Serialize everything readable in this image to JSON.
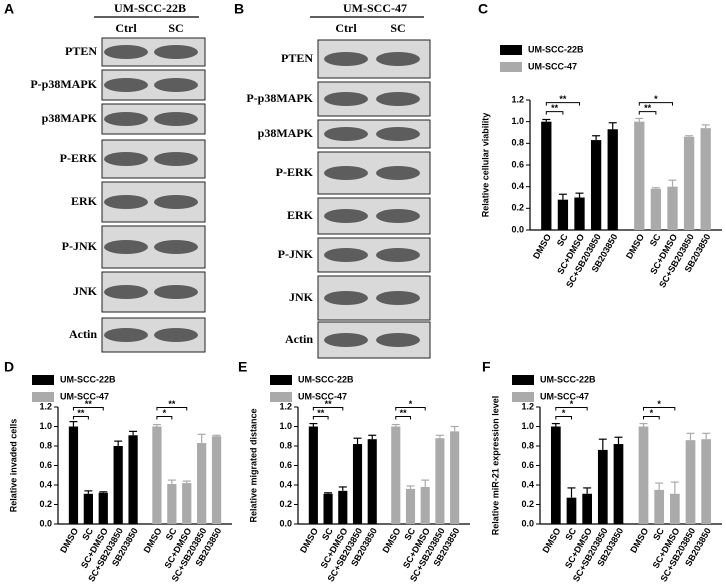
{
  "blots": [
    {
      "panel": "A",
      "title": "UM-SCC-22B",
      "lanes": [
        "Ctrl",
        "SC"
      ],
      "proteins": [
        "PTEN",
        "P-p38MAPK",
        "p38MAPK",
        "P-ERK",
        "ERK",
        "P-JNK",
        "JNK",
        "Actin"
      ]
    },
    {
      "panel": "B",
      "title": "UM-SCC-47",
      "lanes": [
        "Ctrl",
        "SC"
      ],
      "proteins": [
        "PTEN",
        "P-p38MAPK",
        "p38MAPK",
        "P-ERK",
        "ERK",
        "P-JNK",
        "JNK",
        "Actin"
      ]
    }
  ],
  "chart_data": [
    {
      "type": "bar",
      "panel": "C",
      "y_label": "Relative cellular viability",
      "categories": [
        "DMSO",
        "SC",
        "SC+DMSO",
        "SC+SB203850",
        "SB203850",
        "DMSO",
        "SC",
        "SC+DMSO",
        "SC+SB203850",
        "SB203850"
      ],
      "series": [
        {
          "name": "UM-SCC-22B",
          "color": "#000000",
          "values": [
            1.0,
            0.28,
            0.3,
            0.83,
            0.93,
            null,
            null,
            null,
            null,
            null
          ],
          "errors": [
            0.02,
            0.05,
            0.04,
            0.04,
            0.06,
            null,
            null,
            null,
            null,
            null
          ]
        },
        {
          "name": "UM-SCC-47",
          "color": "#aaaaaa",
          "values": [
            null,
            null,
            null,
            null,
            null,
            1.0,
            0.38,
            0.4,
            0.86,
            0.94
          ],
          "errors": [
            null,
            null,
            null,
            null,
            null,
            0.03,
            0.01,
            0.06,
            0.01,
            0.03
          ]
        }
      ],
      "ylim": [
        0,
        1.2
      ],
      "yticks": [
        {
          "value": 0,
          "label": "0.0"
        },
        0.2,
        0.4,
        0.6,
        0.8,
        {
          "value": 1,
          "label": "1.0"
        },
        1.2
      ],
      "annotations": [
        "**",
        "**",
        "**",
        "*"
      ]
    },
    {
      "type": "bar",
      "panel": "D",
      "y_label": "Relative invaded cells",
      "categories": [
        "DMSO",
        "SC",
        "SC+DMSO",
        "SC+SB203850",
        "SB203850",
        "DMSO",
        "SC",
        "SC+DMSO",
        "SC+SB203850",
        "SB203850"
      ],
      "series": [
        {
          "name": "UM-SCC-22B",
          "color": "#000000",
          "values": [
            1.0,
            0.31,
            0.32,
            0.8,
            0.91,
            null,
            null,
            null,
            null,
            null
          ],
          "errors": [
            0.05,
            0.03,
            0.01,
            0.05,
            0.04,
            null,
            null,
            null,
            null,
            null
          ]
        },
        {
          "name": "UM-SCC-47",
          "color": "#aaaaaa",
          "values": [
            null,
            null,
            null,
            null,
            null,
            1.0,
            0.41,
            0.42,
            0.83,
            0.9
          ],
          "errors": [
            null,
            null,
            null,
            null,
            null,
            0.02,
            0.04,
            0.02,
            0.09,
            0.01
          ]
        }
      ],
      "ylim": [
        0,
        1.2
      ],
      "yticks": [
        {
          "value": 0,
          "label": "0.0"
        },
        0.2,
        0.4,
        0.6,
        0.8,
        {
          "value": 1,
          "label": "1.0"
        },
        1.2
      ],
      "annotations": [
        "**",
        "**",
        "*",
        "**"
      ]
    },
    {
      "type": "bar",
      "panel": "E",
      "y_label": "Relative migrated distance",
      "categories": [
        "DMSO",
        "SC",
        "SC+DMSO",
        "SC+SB203850",
        "SB203850",
        "DMSO",
        "SC",
        "SC+DMSO",
        "SC+SB203850",
        "SB203850"
      ],
      "series": [
        {
          "name": "UM-SCC-22B",
          "color": "#000000",
          "values": [
            1.0,
            0.31,
            0.34,
            0.82,
            0.87,
            null,
            null,
            null,
            null,
            null
          ],
          "errors": [
            0.03,
            0.01,
            0.04,
            0.06,
            0.04,
            null,
            null,
            null,
            null,
            null
          ]
        },
        {
          "name": "UM-SCC-47",
          "color": "#aaaaaa",
          "values": [
            null,
            null,
            null,
            null,
            null,
            1.0,
            0.36,
            0.38,
            0.88,
            0.95
          ],
          "errors": [
            null,
            null,
            null,
            null,
            null,
            0.02,
            0.03,
            0.07,
            0.03,
            0.05
          ]
        }
      ],
      "ylim": [
        0,
        1.2
      ],
      "yticks": [
        {
          "value": 0,
          "label": "0.0"
        },
        0.2,
        0.4,
        0.6,
        0.8,
        {
          "value": 1,
          "label": "1.0"
        },
        1.2
      ],
      "annotations": [
        "**",
        "**",
        "**",
        "*"
      ]
    },
    {
      "type": "bar",
      "panel": "F",
      "y_label": "Relative miR-21 expression level",
      "categories": [
        "DMSO",
        "SC",
        "SC+DMSO",
        "SC+SB203850",
        "SB203850",
        "DMSO",
        "SC",
        "SC+DMSO",
        "SC+SB203850",
        "SB203850"
      ],
      "series": [
        {
          "name": "UM-SCC-22B",
          "color": "#000000",
          "values": [
            1.0,
            0.27,
            0.31,
            0.76,
            0.82,
            null,
            null,
            null,
            null,
            null
          ],
          "errors": [
            0.03,
            0.1,
            0.06,
            0.11,
            0.07,
            null,
            null,
            null,
            null,
            null
          ]
        },
        {
          "name": "UM-SCC-47",
          "color": "#aaaaaa",
          "values": [
            null,
            null,
            null,
            null,
            null,
            1.0,
            0.35,
            0.31,
            0.86,
            0.87
          ],
          "errors": [
            null,
            null,
            null,
            null,
            null,
            0.03,
            0.07,
            0.12,
            0.07,
            0.06
          ]
        }
      ],
      "ylim": [
        0,
        1.2
      ],
      "yticks": [
        {
          "value": 0,
          "label": "0.0"
        },
        0.2,
        0.4,
        0.6,
        0.8,
        {
          "value": 1,
          "label": "1.0"
        },
        1.2
      ],
      "annotations": [
        "*",
        "*",
        "*",
        "*"
      ]
    }
  ]
}
